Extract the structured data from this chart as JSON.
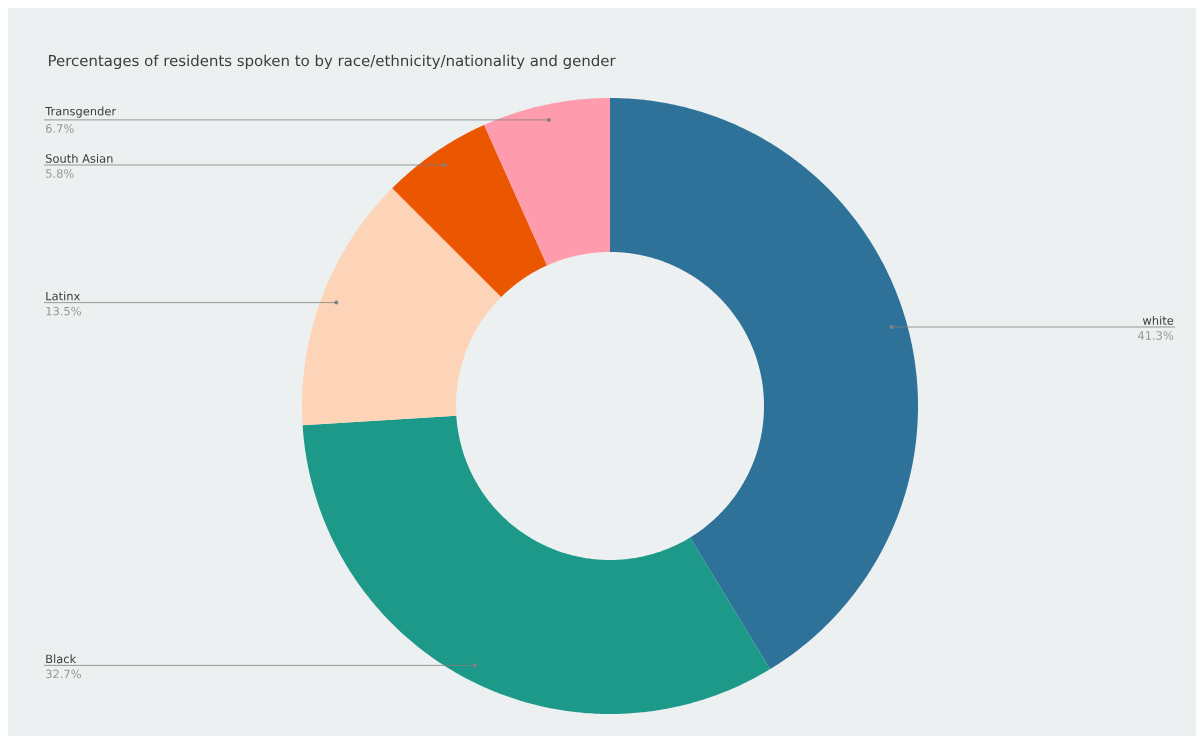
{
  "chart_data": {
    "type": "donut",
    "title": "Percentages of residents spoken to by race/ethnicity/nationality and gender",
    "categories": [
      "white",
      "Black",
      "Latinx",
      "South Asian",
      "Transgender"
    ],
    "values": [
      41.3,
      32.7,
      13.5,
      5.8,
      6.7
    ],
    "value_labels": [
      "41.3%",
      "32.7%",
      "13.5%",
      "5.8%",
      "6.7%"
    ],
    "colors": [
      "#2e7299",
      "#1c9988",
      "#fed4b8",
      "#eb5600",
      "#fe9bad"
    ]
  }
}
